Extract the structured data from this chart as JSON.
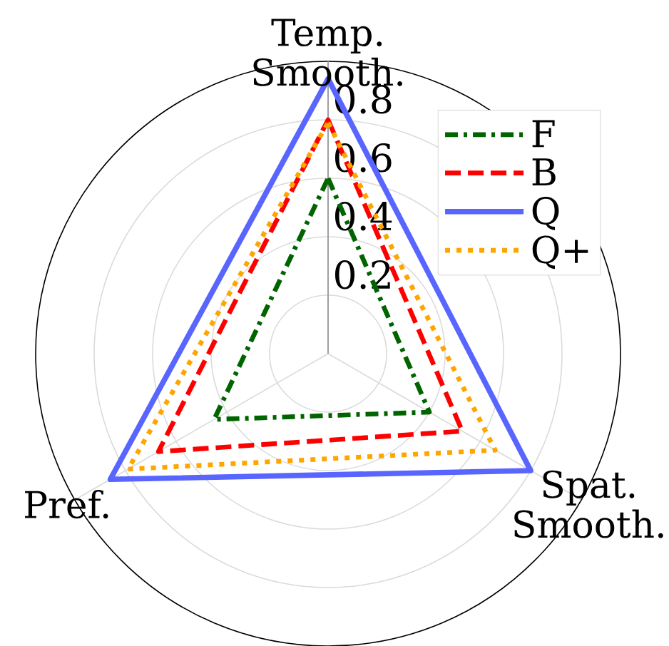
{
  "chart_data": {
    "type": "radar",
    "categories": [
      "Temp. Smooth.",
      "Spat. Smooth.",
      "Pref."
    ],
    "series": [
      {
        "name": "F",
        "color": "#006400",
        "line_style": "dashdot",
        "values": [
          0.6,
          0.4,
          0.45
        ]
      },
      {
        "name": "B",
        "color": "#ff0000",
        "line_style": "dashed",
        "values": [
          0.8,
          0.53,
          0.67
        ]
      },
      {
        "name": "Q",
        "color": "#5865ff",
        "line_style": "solid",
        "values": [
          0.94,
          0.8,
          0.86
        ]
      },
      {
        "name": "Q+",
        "color": "#ffa500",
        "line_style": "dotted",
        "values": [
          0.79,
          0.66,
          0.79
        ]
      }
    ],
    "ylim": [
      0,
      1
    ],
    "yticks": [
      0.2,
      0.4,
      0.6,
      0.8
    ],
    "grid": true,
    "legend": "top right"
  }
}
